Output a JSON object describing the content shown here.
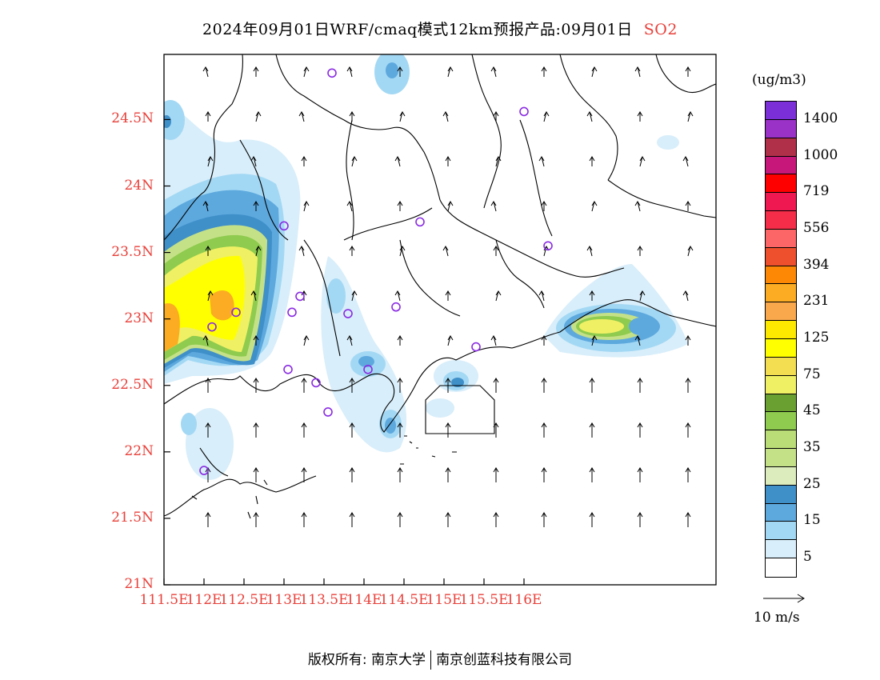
{
  "title": {
    "main": "2024年09月01日WRF/cmaq模式12km预报产品:09月01日",
    "species": "SO2"
  },
  "colorbar": {
    "unit": "(ug/m3)",
    "colors": [
      "#7b2fd6",
      "#9b32c8",
      "#b0304a",
      "#c8177a",
      "#fe0000",
      "#f01850",
      "#f52d48",
      "#fd6666",
      "#ee4f2c",
      "#fc8806",
      "#fbac22",
      "#f9a84c",
      "#fde800",
      "#ffff00",
      "#f2de50",
      "#f0f064",
      "#6aa032",
      "#8ecb4e",
      "#bbdd77",
      "#c5e188",
      "#dcecbc",
      "#3f8fc9",
      "#5da9de",
      "#a3d8f4",
      "#d8eefa",
      "#ffffff"
    ],
    "labels": [
      "1400",
      "1000",
      "719",
      "556",
      "394",
      "231",
      "125",
      "75",
      "45",
      "35",
      "25",
      "15",
      "5"
    ]
  },
  "axes": {
    "lat_labels": [
      "24.5N",
      "24N",
      "23.5N",
      "23N",
      "22.5N",
      "22N",
      "21.5N",
      "21N"
    ],
    "lon_labels": [
      "111.5E",
      "112E",
      "112.5E",
      "113E",
      "113.5E",
      "114E",
      "114.5E",
      "115E",
      "115.5E",
      "116E"
    ]
  },
  "wind_reference": "10 m/s",
  "stations": [
    {
      "lon": 113.6,
      "lat": 24.85
    },
    {
      "lon": 116.0,
      "lat": 24.56
    },
    {
      "lon": 113.0,
      "lat": 23.7
    },
    {
      "lon": 114.7,
      "lat": 23.73
    },
    {
      "lon": 116.3,
      "lat": 23.55
    },
    {
      "lon": 113.2,
      "lat": 23.17
    },
    {
      "lon": 113.1,
      "lat": 23.05
    },
    {
      "lon": 113.8,
      "lat": 23.04
    },
    {
      "lon": 114.4,
      "lat": 23.09
    },
    {
      "lon": 112.4,
      "lat": 23.05
    },
    {
      "lon": 112.1,
      "lat": 22.94
    },
    {
      "lon": 113.05,
      "lat": 22.62
    },
    {
      "lon": 113.4,
      "lat": 22.52
    },
    {
      "lon": 114.05,
      "lat": 22.62
    },
    {
      "lon": 115.4,
      "lat": 22.79
    },
    {
      "lon": 113.55,
      "lat": 22.3
    },
    {
      "lon": 112.0,
      "lat": 21.86
    }
  ],
  "footer": {
    "left": "版权所有: 南京大学",
    "right": "南京创蓝科技有限公司"
  }
}
